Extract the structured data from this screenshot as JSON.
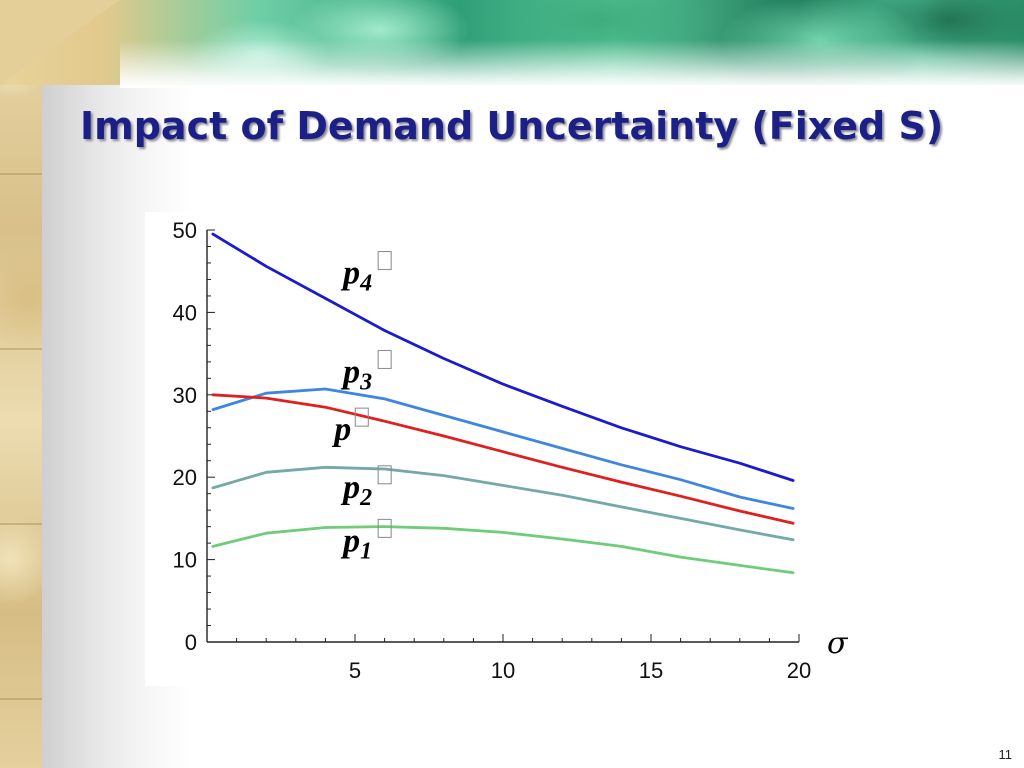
{
  "slide": {
    "title": "Impact of Demand Uncertainty (Fixed S)",
    "page_number": "11",
    "sigma_symbol": "σ",
    "colors": {
      "title": "#1b1f86"
    }
  },
  "chart_data": {
    "type": "line",
    "title": "",
    "xlabel": "σ",
    "ylabel": "",
    "xlim": [
      0,
      20
    ],
    "ylim": [
      0,
      50
    ],
    "xticks": [
      5,
      10,
      15,
      20
    ],
    "yticks": [
      0,
      10,
      20,
      30,
      40,
      50
    ],
    "grid": false,
    "legend": "inline labels",
    "x": [
      0.2,
      2,
      4,
      6,
      8,
      10,
      12,
      14,
      16,
      18,
      19.8
    ],
    "series": [
      {
        "name": "p4*",
        "label_base": "p",
        "label_sub": "4",
        "color": "#1a1ccc",
        "values": [
          49.5,
          45.6,
          41.7,
          37.8,
          34.4,
          31.3,
          28.6,
          26.0,
          23.7,
          21.7,
          19.6
        ]
      },
      {
        "name": "p3*",
        "label_base": "p",
        "label_sub": "3",
        "color": "#3f86e0",
        "values": [
          28.2,
          30.2,
          30.7,
          29.5,
          27.5,
          25.5,
          23.5,
          21.5,
          19.7,
          17.6,
          16.2
        ]
      },
      {
        "name": "p*",
        "label_base": "p",
        "label_sub": "",
        "color": "#e01f1f",
        "values": [
          30.0,
          29.6,
          28.5,
          26.8,
          25.0,
          23.1,
          21.2,
          19.4,
          17.7,
          15.9,
          14.4
        ]
      },
      {
        "name": "p2*",
        "label_base": "p",
        "label_sub": "2",
        "color": "#74a9a9",
        "values": [
          18.7,
          20.6,
          21.2,
          21.0,
          20.2,
          19.0,
          17.8,
          16.4,
          15.0,
          13.6,
          12.4
        ]
      },
      {
        "name": "p1*",
        "label_base": "p",
        "label_sub": "1",
        "color": "#6fcc78",
        "values": [
          11.6,
          13.2,
          13.9,
          14.0,
          13.8,
          13.3,
          12.5,
          11.6,
          10.3,
          9.3,
          8.4
        ]
      }
    ]
  }
}
